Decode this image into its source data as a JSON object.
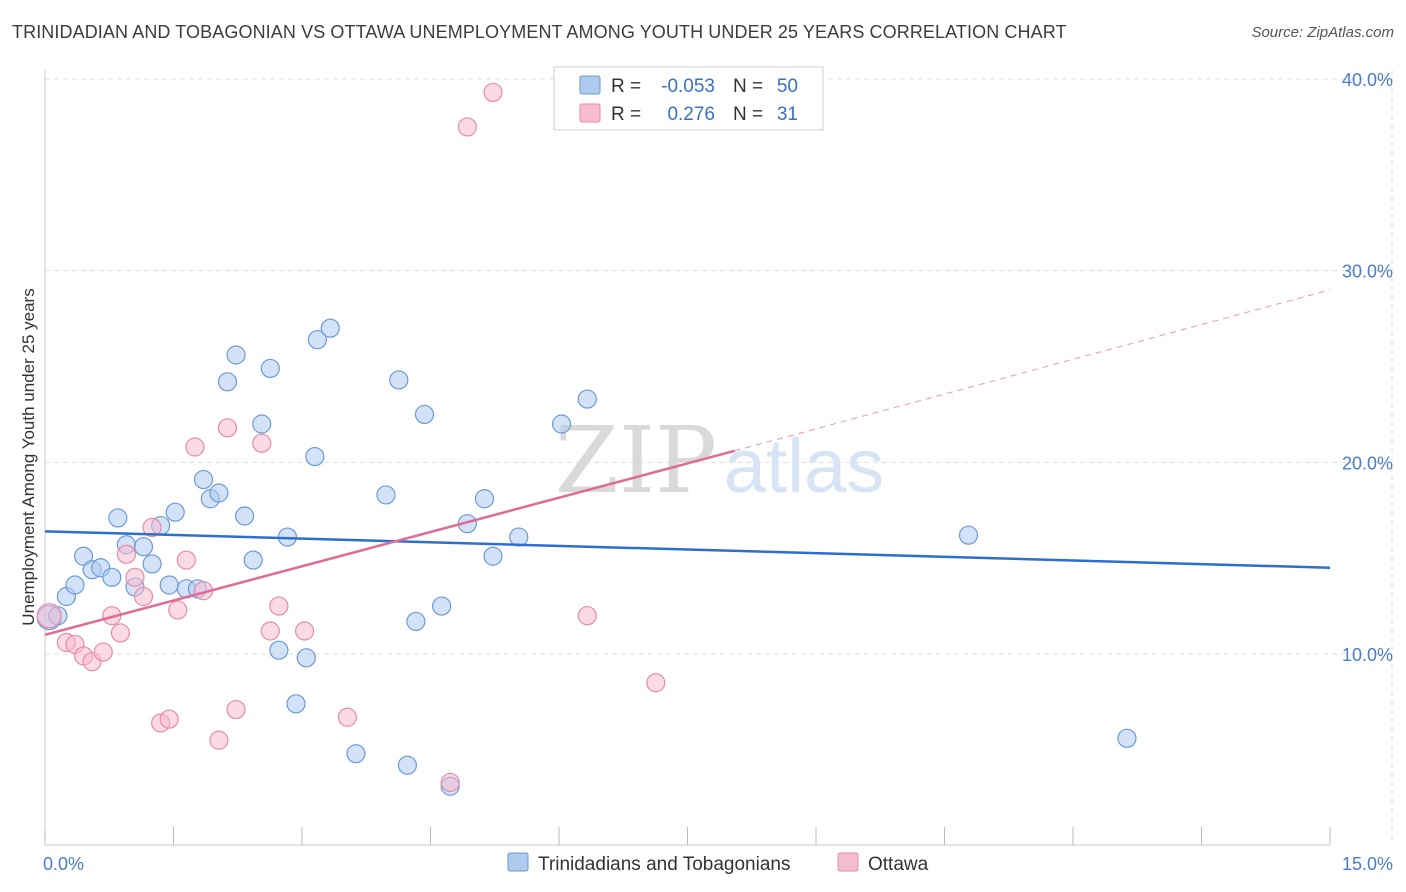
{
  "title": "TRINIDADIAN AND TOBAGONIAN VS OTTAWA UNEMPLOYMENT AMONG YOUTH UNDER 25 YEARS CORRELATION CHART",
  "source": "Source: ZipAtlas.com",
  "watermark": {
    "zip": "ZIP",
    "atlas": "atlas"
  },
  "colors": {
    "blue_fill": "#aecbee",
    "blue_stroke": "#6a9ad8",
    "blue_line": "#2d6fcf",
    "pink_fill": "#f6bcd0",
    "pink_stroke": "#e88aa8",
    "pink_line": "#e06b96",
    "grid": "#dddddd",
    "tick_label": "#4a7cc7"
  },
  "legend": {
    "rows": [
      {
        "r_label": "R =",
        "r_value": "-0.053",
        "n_label": "N =",
        "n_value": "50"
      },
      {
        "r_label": "R =",
        "r_value": "0.276",
        "n_label": "N =",
        "n_value": "31"
      }
    ]
  },
  "bottom_legend": [
    "Trinidadians and Tobagonians",
    "Ottawa"
  ],
  "chart_data": {
    "type": "scatter",
    "title": "TRINIDADIAN AND TOBAGONIAN VS OTTAWA UNEMPLOYMENT AMONG YOUTH UNDER 25 YEARS CORRELATION CHART",
    "xlabel": "",
    "ylabel": "Unemployment Among Youth under 25 years",
    "xlim": [
      0,
      15
    ],
    "ylim": [
      0,
      40
    ],
    "x_tick_labels": [
      "0.0%",
      "15.0%"
    ],
    "y_ticks": [
      10,
      20,
      30,
      40
    ],
    "y_tick_labels": [
      "10.0%",
      "20.0%",
      "30.0%",
      "40.0%"
    ],
    "grid": true,
    "series": [
      {
        "name": "Trinidadians and Tobagonians",
        "R": -0.053,
        "N": 50,
        "trend": {
          "x0": 0,
          "y0": 16.4,
          "x1": 15,
          "y1": 14.5,
          "dashed_to": null
        },
        "points": [
          [
            0.05,
            11.9
          ],
          [
            0.15,
            12.0
          ],
          [
            0.25,
            13.0
          ],
          [
            0.35,
            13.6
          ],
          [
            0.45,
            15.1
          ],
          [
            0.55,
            14.4
          ],
          [
            0.65,
            14.5
          ],
          [
            0.78,
            14.0
          ],
          [
            0.85,
            17.1
          ],
          [
            0.95,
            15.7
          ],
          [
            1.05,
            13.5
          ],
          [
            1.15,
            15.6
          ],
          [
            1.25,
            14.7
          ],
          [
            1.35,
            16.7
          ],
          [
            1.45,
            13.6
          ],
          [
            1.52,
            17.4
          ],
          [
            1.65,
            13.4
          ],
          [
            1.78,
            13.4
          ],
          [
            1.85,
            19.1
          ],
          [
            1.93,
            18.1
          ],
          [
            2.03,
            18.4
          ],
          [
            2.13,
            24.2
          ],
          [
            2.23,
            25.6
          ],
          [
            2.33,
            17.2
          ],
          [
            2.43,
            14.9
          ],
          [
            2.53,
            22.0
          ],
          [
            2.63,
            24.9
          ],
          [
            2.73,
            10.2
          ],
          [
            2.83,
            16.1
          ],
          [
            2.93,
            7.4
          ],
          [
            3.05,
            9.8
          ],
          [
            3.15,
            20.3
          ],
          [
            3.18,
            26.4
          ],
          [
            3.33,
            27.0
          ],
          [
            3.63,
            4.8
          ],
          [
            3.98,
            18.3
          ],
          [
            4.13,
            24.3
          ],
          [
            4.23,
            4.2
          ],
          [
            4.33,
            11.7
          ],
          [
            4.43,
            22.5
          ],
          [
            4.63,
            12.5
          ],
          [
            4.73,
            3.1
          ],
          [
            4.93,
            16.8
          ],
          [
            5.13,
            18.1
          ],
          [
            5.23,
            15.1
          ],
          [
            5.53,
            16.1
          ],
          [
            6.03,
            22.0
          ],
          [
            6.33,
            23.3
          ],
          [
            10.78,
            16.2
          ],
          [
            12.63,
            5.6
          ]
        ]
      },
      {
        "name": "Ottawa",
        "R": 0.276,
        "N": 31,
        "trend": {
          "x0": 0,
          "y0": 11.0,
          "x1": 8.05,
          "y1": 20.6,
          "dashed_to": [
            15,
            29.0
          ]
        },
        "points": [
          [
            0.05,
            12.0
          ],
          [
            0.25,
            10.6
          ],
          [
            0.35,
            10.5
          ],
          [
            0.45,
            9.9
          ],
          [
            0.55,
            9.6
          ],
          [
            0.68,
            10.1
          ],
          [
            0.78,
            12.0
          ],
          [
            0.88,
            11.1
          ],
          [
            0.95,
            15.2
          ],
          [
            1.05,
            14.0
          ],
          [
            1.15,
            13.0
          ],
          [
            1.25,
            16.6
          ],
          [
            1.35,
            6.4
          ],
          [
            1.45,
            6.6
          ],
          [
            1.55,
            12.3
          ],
          [
            1.65,
            14.9
          ],
          [
            1.75,
            20.8
          ],
          [
            1.85,
            13.3
          ],
          [
            2.03,
            5.5
          ],
          [
            2.13,
            21.8
          ],
          [
            2.23,
            7.1
          ],
          [
            2.53,
            21.0
          ],
          [
            2.63,
            11.2
          ],
          [
            2.73,
            12.5
          ],
          [
            3.03,
            11.2
          ],
          [
            3.53,
            6.7
          ],
          [
            4.73,
            3.3
          ],
          [
            4.93,
            37.5
          ],
          [
            5.23,
            39.3
          ],
          [
            6.33,
            12.0
          ],
          [
            7.13,
            8.5
          ]
        ]
      }
    ]
  }
}
